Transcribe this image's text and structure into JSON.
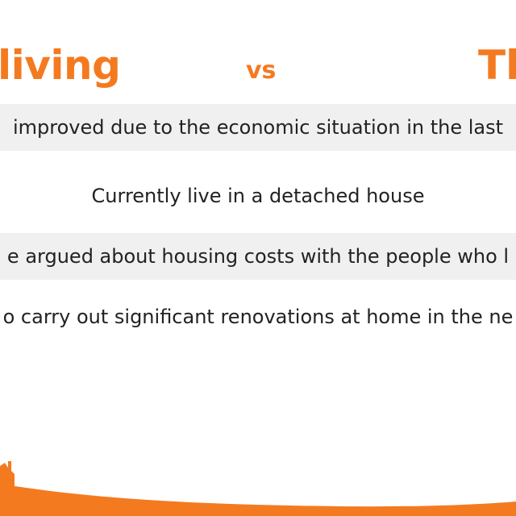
{
  "header": {
    "left_title": "living",
    "vs_label": "vs",
    "right_title": "Th"
  },
  "rows": [
    {
      "text": "improved due to the economic situation in the last"
    },
    {
      "text": "Currently live in a detached house"
    },
    {
      "text": "e argued about housing costs with the people who l"
    },
    {
      "text": "o carry out significant renovations at home in the ne"
    }
  ],
  "colors": {
    "accent": "#f47a20",
    "row_shade": "#f0f0f0",
    "text": "#222222"
  }
}
